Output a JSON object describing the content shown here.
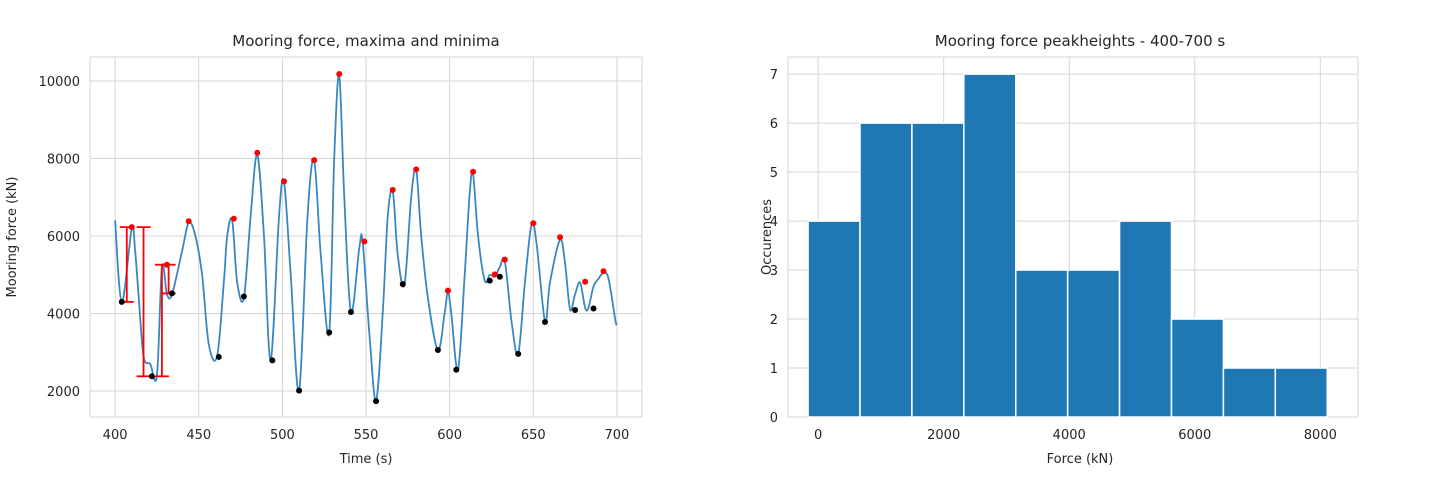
{
  "chart_data": [
    {
      "type": "line",
      "title": "Mooring force, maxima and minima",
      "xlabel": "Time (s)",
      "ylabel": "Mooring force (kN)",
      "xlim": [
        385,
        715
      ],
      "ylim": [
        1330,
        10620
      ],
      "xticks": [
        400,
        450,
        500,
        550,
        600,
        650,
        700
      ],
      "yticks": [
        2000,
        4000,
        6000,
        8000,
        10000
      ],
      "grid": true,
      "colors": {
        "line": "#3a87c0",
        "maxima": "#ff0000",
        "minima": "#000000",
        "errorbar": "#ff0000"
      },
      "series": [
        {
          "role": "force",
          "x": [
            400,
            404,
            410,
            412,
            414,
            417,
            421,
            425,
            428,
            431,
            434,
            440,
            444,
            448,
            452,
            456,
            461,
            465,
            467,
            470,
            473,
            477,
            481,
            485,
            489,
            493,
            498,
            501,
            505,
            510,
            515,
            519,
            523,
            528,
            531,
            534,
            537,
            541,
            546,
            548,
            552,
            556,
            560,
            563,
            566,
            569,
            573,
            577,
            580,
            583,
            587,
            593,
            597,
            599,
            601,
            605,
            609,
            612,
            614,
            617,
            621,
            624,
            627,
            630,
            633,
            637,
            641,
            645,
            649,
            652,
            657,
            660,
            666,
            669,
            672,
            675,
            678,
            681,
            683,
            686,
            689,
            692,
            695,
            699,
            700
          ],
          "y": [
            6400,
            4300,
            6200,
            5600,
            4500,
            2900,
            2700,
            2400,
            5200,
            4500,
            4500,
            5600,
            6350,
            6000,
            5000,
            3200,
            2900,
            4800,
            6000,
            6400,
            4800,
            4400,
            6500,
            8100,
            6000,
            2800,
            6500,
            7400,
            5000,
            2000,
            6500,
            7950,
            5500,
            3500,
            8000,
            10150,
            7000,
            4050,
            5700,
            5850,
            3500,
            1750,
            4000,
            6500,
            7150,
            5500,
            4750,
            7000,
            7700,
            6000,
            4400,
            3050,
            4000,
            4550,
            4000,
            2550,
            5000,
            7100,
            7600,
            6000,
            4850,
            5000,
            4950,
            5200,
            5350,
            3800,
            2950,
            4800,
            6300,
            5800,
            3800,
            4800,
            5900,
            5300,
            4100,
            4500,
            4800,
            4150,
            4150,
            4700,
            4900,
            5050,
            4900,
            3850,
            3700
          ]
        },
        {
          "role": "maxima",
          "x": [
            410,
            431,
            444,
            471,
            485,
            501,
            519,
            534,
            549,
            566,
            580,
            599,
            614,
            627,
            633,
            650,
            666,
            681,
            692
          ],
          "y": [
            6230,
            5260,
            6380,
            6450,
            8150,
            7410,
            7960,
            10180,
            5860,
            7190,
            7720,
            4590,
            7660,
            5010,
            5390,
            6330,
            5970,
            4820,
            5090
          ]
        },
        {
          "role": "minima",
          "x": [
            404,
            422,
            434,
            462,
            477,
            494,
            510,
            528,
            541,
            556,
            572,
            593,
            604,
            624,
            630,
            641,
            657,
            675,
            686
          ],
          "y": [
            4300,
            2380,
            4520,
            2880,
            4440,
            2790,
            2010,
            3510,
            4040,
            1740,
            4760,
            3060,
            2550,
            4850,
            4950,
            2960,
            3780,
            4090,
            4130
          ]
        },
        {
          "role": "peak-range-errorbars",
          "bars": [
            {
              "x": 407,
              "low": 4300,
              "high": 6230
            },
            {
              "x": 417,
              "low": 2380,
              "high": 6230
            },
            {
              "x": 428,
              "low": 2380,
              "high": 5260
            },
            {
              "x": 432,
              "low": 4520,
              "high": 5260
            }
          ]
        }
      ]
    },
    {
      "type": "bar",
      "title": "Mooring force peakheights - 400-700 s",
      "xlabel": "Force (kN)",
      "ylabel": "Occurences",
      "xlim": [
        -480,
        8600
      ],
      "ylim": [
        0,
        7.35
      ],
      "xticks": [
        0,
        2000,
        4000,
        6000,
        8000
      ],
      "yticks": [
        0,
        1,
        2,
        3,
        4,
        5,
        6,
        7
      ],
      "grid": true,
      "colors": {
        "bar": "#1f77b4",
        "edge": "#ffffff"
      },
      "bin_edges": [
        -160,
        667,
        1494,
        2321,
        3148,
        3975,
        4802,
        5629,
        6456,
        7283,
        8110
      ],
      "values": [
        4,
        6,
        6,
        7,
        3,
        3,
        4,
        2,
        1,
        1
      ]
    }
  ]
}
